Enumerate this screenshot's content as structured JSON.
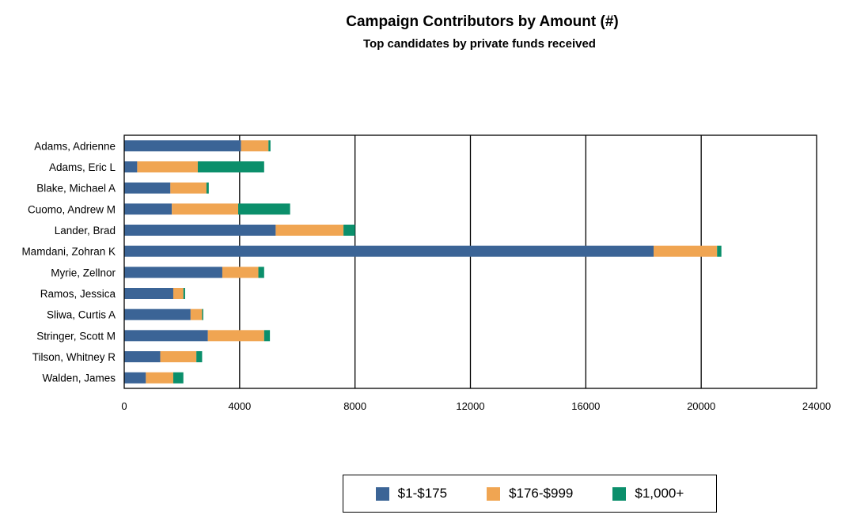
{
  "chart_data": {
    "type": "bar",
    "orientation": "horizontal",
    "stacked": true,
    "title": "Campaign Contributors by Amount (#)",
    "subtitle": "Top candidates by private funds received",
    "categories": [
      "Adams, Adrienne",
      "Adams, Eric L",
      "Blake, Michael A",
      "Cuomo, Andrew M",
      "Lander, Brad",
      "Mamdani, Zohran K",
      "Myrie, Zellnor",
      "Ramos, Jessica",
      "Sliwa, Curtis A",
      "Stringer, Scott M",
      "Tilson, Whitney R",
      "Walden, James"
    ],
    "series": [
      {
        "name": "$1-$175",
        "color": "#3b6496",
        "values": [
          4050,
          450,
          1600,
          1650,
          5250,
          18350,
          3400,
          1700,
          2300,
          2900,
          1250,
          750
        ]
      },
      {
        "name": "$176-$999",
        "color": "#f0a552",
        "values": [
          950,
          2100,
          1250,
          2300,
          2350,
          2200,
          1250,
          350,
          400,
          1950,
          1250,
          950
        ]
      },
      {
        "name": "$1,000+",
        "color": "#0b8f6b",
        "values": [
          70,
          2300,
          80,
          1800,
          400,
          150,
          200,
          60,
          40,
          200,
          200,
          350
        ]
      }
    ],
    "xlim": [
      0,
      24000
    ],
    "xticks": [
      "0",
      "4000",
      "8000",
      "12000",
      "16000",
      "20000",
      "24000"
    ],
    "grid": "vertical",
    "legend": "bottom"
  }
}
